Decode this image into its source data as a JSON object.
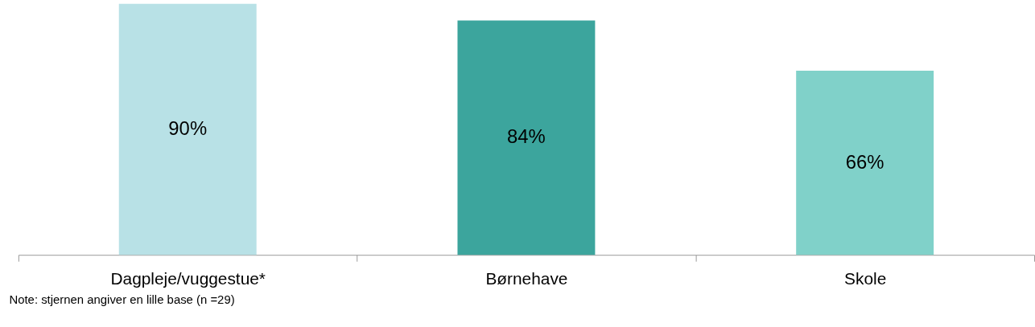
{
  "chart_data": {
    "type": "bar",
    "categories": [
      "Dagpleje/vuggestue*",
      "Børnehave",
      "Skole"
    ],
    "values": [
      90,
      84,
      66
    ],
    "colors": [
      "#b8e1e6",
      "#3ca59d",
      "#80d1c9"
    ],
    "value_labels": [
      "90%",
      "84%",
      "66%"
    ],
    "ylim": [
      0,
      91
    ],
    "grid": false,
    "annotations": [
      "Note: stjernen angiver en lille base (n =29)"
    ]
  }
}
